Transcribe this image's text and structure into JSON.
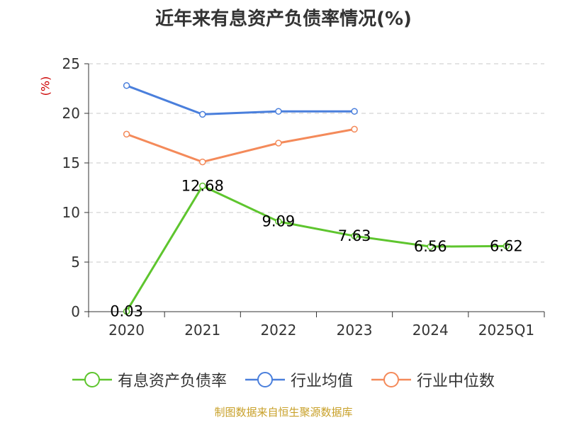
{
  "chart_data": {
    "type": "line",
    "title": "近年来有息资产负债率情况(%)",
    "ylabel": "(%)",
    "xlabel": "",
    "categories": [
      "2020",
      "2021",
      "2022",
      "2023",
      "2024",
      "2025Q1"
    ],
    "ylim": [
      0,
      25
    ],
    "yticks": [
      0,
      5,
      10,
      15,
      20,
      25
    ],
    "grid": true,
    "legend_position": "bottom",
    "series": [
      {
        "name": "有息资产负债率",
        "color": "#5ec52e",
        "values": [
          0.03,
          12.68,
          9.09,
          7.63,
          6.56,
          6.62
        ],
        "labels": [
          "0.03",
          "12.68",
          "9.09",
          "7.63",
          "6.56",
          "6.62"
        ]
      },
      {
        "name": "行业均值",
        "color": "#4a7fdc",
        "values": [
          22.8,
          19.9,
          20.2,
          20.2,
          null,
          null
        ]
      },
      {
        "name": "行业中位数",
        "color": "#f48a5a",
        "values": [
          17.9,
          15.1,
          17.0,
          18.4,
          null,
          null
        ]
      }
    ]
  },
  "source": "制图数据来自恒生聚源数据库"
}
